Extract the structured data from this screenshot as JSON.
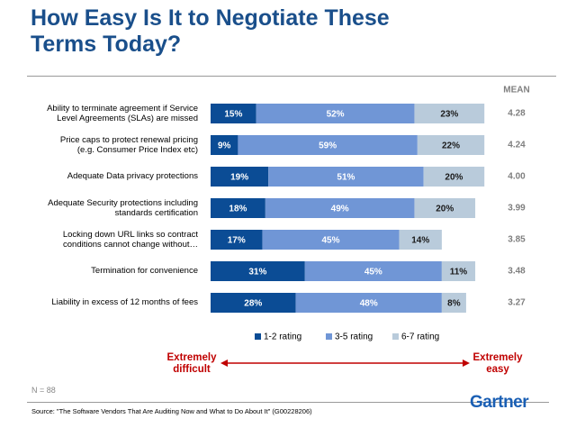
{
  "chart_data": {
    "type": "stacked-barh",
    "title": "How Easy Is It to Negotiate These\nTerms Today?",
    "categories": [
      "Ability to terminate agreement if Service\nLevel Agreements (SLAs) are missed",
      "Price caps to protect renewal pricing\n(e.g. Consumer Price Index etc)",
      "Adequate Data privacy protections",
      "Adequate Security protections including\nstandards certification",
      "Locking down URL links so contract\nconditions cannot change without…",
      "Termination for convenience",
      "Liability in excess of 12 months of fees"
    ],
    "series": [
      {
        "name": "1-2 rating",
        "color": "#0b4c95",
        "values": [
          15,
          9,
          19,
          18,
          17,
          31,
          28
        ],
        "value_labels": [
          "15%",
          "9%",
          "19%",
          "18%",
          "17%",
          "31%",
          "28%"
        ]
      },
      {
        "name": "3-5 rating",
        "color": "#7096d6",
        "values": [
          52,
          59,
          51,
          49,
          45,
          45,
          48
        ],
        "value_labels": [
          "52%",
          "59%",
          "51%",
          "49%",
          "45%",
          "45%",
          "48%"
        ]
      },
      {
        "name": "6-7 rating",
        "color": "#b9cbdb",
        "values": [
          23,
          22,
          20,
          20,
          14,
          11,
          8
        ],
        "value_labels": [
          "23%",
          "22%",
          "20%",
          "20%",
          "14%",
          "11%",
          "8%"
        ]
      }
    ],
    "xlim": [
      0,
      100
    ],
    "mean": {
      "label": "MEAN",
      "values": [
        4.28,
        4.24,
        4.0,
        3.99,
        3.85,
        3.48,
        3.27
      ],
      "value_labels": [
        "4.28",
        "4.24",
        "4.00",
        "3.99",
        "3.85",
        "3.48",
        "3.27"
      ]
    },
    "scale_left": "Extremely\ndifficult",
    "scale_right": "Extremely\neasy",
    "note": "N = 88",
    "source": "Source: \"The Software Vendors That Are Auditing Now and What to Do About It\" (G00228206)",
    "logo": "Gartner"
  }
}
